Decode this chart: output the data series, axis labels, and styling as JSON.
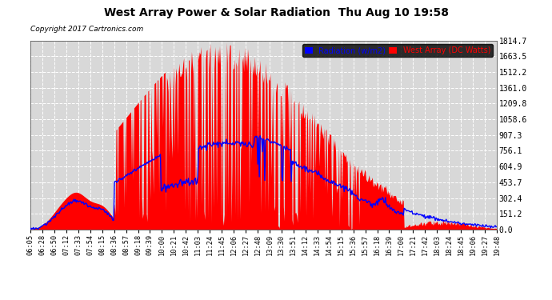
{
  "title": "West Array Power & Solar Radiation  Thu Aug 10 19:58",
  "copyright": "Copyright 2017 Cartronics.com",
  "legend_radiation": "Radiation (w/m2)",
  "legend_west": "West Array (DC Watts)",
  "bg_color": "#ffffff",
  "plot_bg_color": "#d8d8d8",
  "grid_color": "#ffffff",
  "red_color": "#ff0000",
  "blue_color": "#0000ff",
  "ymax": 1814.7,
  "yticks": [
    0.0,
    151.2,
    302.4,
    453.7,
    604.9,
    756.1,
    907.3,
    1058.6,
    1209.8,
    1361.0,
    1512.2,
    1663.5,
    1814.7
  ],
  "x_labels": [
    "06:05",
    "06:28",
    "06:50",
    "07:12",
    "07:33",
    "07:54",
    "08:15",
    "08:36",
    "08:57",
    "09:18",
    "09:39",
    "10:00",
    "10:21",
    "10:42",
    "11:03",
    "11:24",
    "11:45",
    "12:06",
    "12:27",
    "12:48",
    "13:09",
    "13:30",
    "13:51",
    "14:12",
    "14:33",
    "14:54",
    "15:15",
    "15:36",
    "15:57",
    "16:18",
    "16:39",
    "17:00",
    "17:21",
    "17:42",
    "18:03",
    "18:24",
    "18:45",
    "19:06",
    "19:27",
    "19:48"
  ]
}
